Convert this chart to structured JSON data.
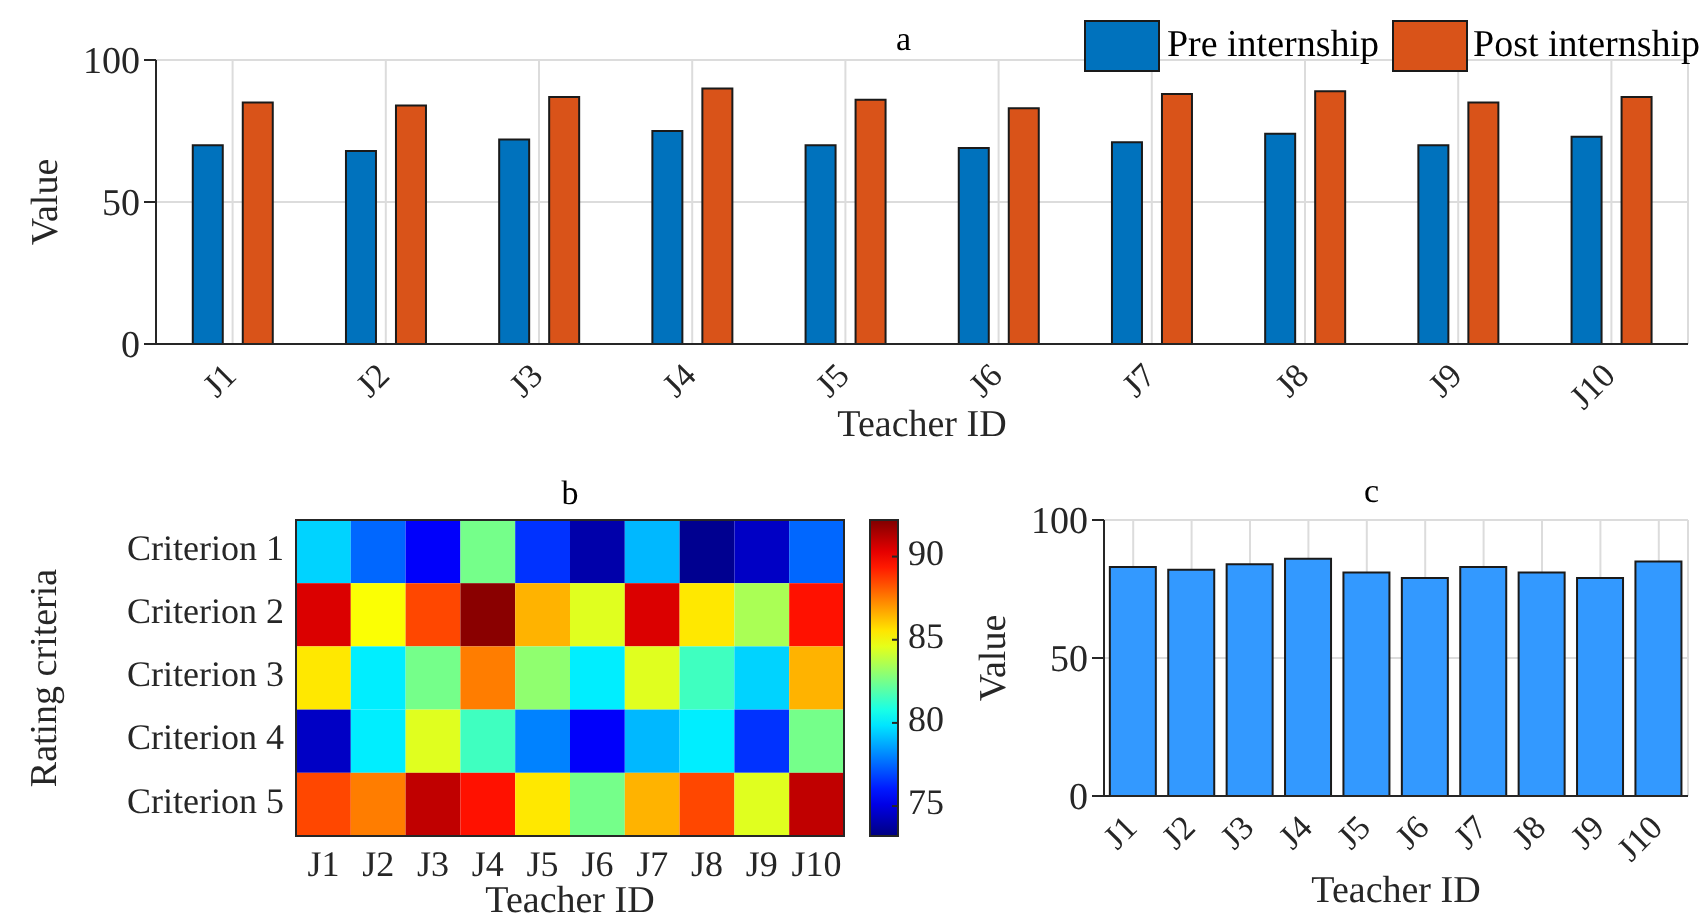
{
  "chart_data": [
    {
      "type": "bar",
      "title": "a",
      "xlabel": "Teacher ID",
      "ylabel": "Value",
      "categories": [
        "J1",
        "J2",
        "J3",
        "J4",
        "J5",
        "J6",
        "J7",
        "J8",
        "J9",
        "J10"
      ],
      "series": [
        {
          "name": "Pre internship",
          "color": "#0072bd",
          "values": [
            70,
            68,
            72,
            75,
            70,
            69,
            71,
            74,
            70,
            73
          ]
        },
        {
          "name": "Post internship",
          "color": "#d95319",
          "values": [
            85,
            84,
            87,
            90,
            86,
            83,
            88,
            89,
            85,
            87
          ]
        }
      ],
      "ylim": [
        0,
        100
      ],
      "yticks": [
        0,
        50,
        100
      ],
      "grid": true,
      "legend": "top right"
    },
    {
      "type": "heatmap",
      "title": "b",
      "xlabel": "Teacher ID",
      "ylabel": "Rating criteria",
      "categories": [
        "J1",
        "J2",
        "J3",
        "J4",
        "J5",
        "J6",
        "J7",
        "J8",
        "J9",
        "J10"
      ],
      "y_categories": [
        "Criterion 1",
        "Criterion 2",
        "Criterion 3",
        "Criterion 4",
        "Criterion 5"
      ],
      "cells": [
        [
          79.5,
          77.5,
          75.5,
          82.5,
          76.5,
          74,
          79,
          73.5,
          74.5,
          77.5
        ],
        [
          90.5,
          85,
          88.5,
          92,
          86.5,
          84.5,
          90.5,
          85.5,
          83.5,
          89.5
        ],
        [
          85.5,
          80,
          82.5,
          87.5,
          83,
          80,
          84.5,
          81.5,
          79.5,
          86.5
        ],
        [
          74.5,
          80,
          84.5,
          81.5,
          78,
          75.5,
          79,
          80,
          76.5,
          82.5
        ],
        [
          88.5,
          87.5,
          91,
          89.5,
          85.5,
          82.5,
          86.5,
          88.5,
          84.5,
          91
        ]
      ],
      "clim": [
        73.2,
        92.2
      ],
      "cticks": [
        75,
        80,
        85,
        90
      ]
    },
    {
      "type": "bar",
      "title": "c",
      "xlabel": "Teacher ID",
      "ylabel": "Value",
      "categories": [
        "J1",
        "J2",
        "J3",
        "J4",
        "J5",
        "J6",
        "J7",
        "J8",
        "J9",
        "J10"
      ],
      "values": [
        83,
        82,
        84,
        86,
        81,
        79,
        83,
        81,
        79,
        85
      ],
      "color": "#3399ff",
      "ylim": [
        0,
        100
      ],
      "yticks": [
        0,
        50,
        100
      ],
      "grid": true
    }
  ]
}
